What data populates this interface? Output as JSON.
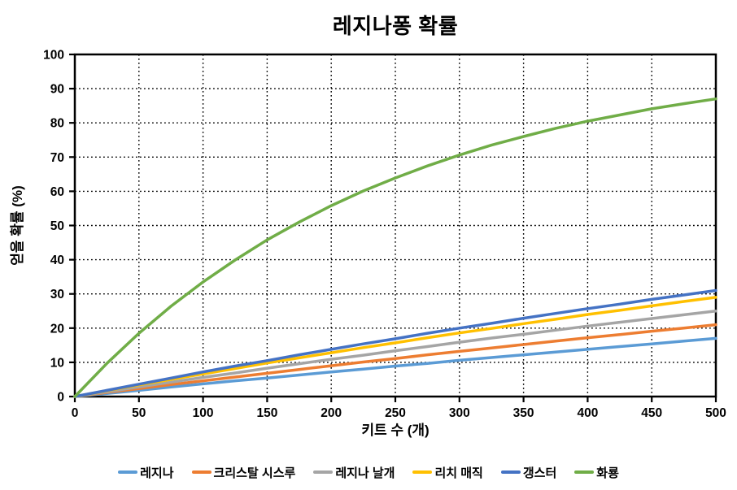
{
  "chart_data": {
    "type": "line",
    "title": "레지나퐁 확률",
    "xlabel": "키트 수 (개)",
    "ylabel": "얻을 확률 (%)",
    "xlim": [
      0,
      500
    ],
    "ylim": [
      0,
      100
    ],
    "x_ticks": [
      0,
      50,
      100,
      150,
      200,
      250,
      300,
      350,
      400,
      450,
      500
    ],
    "y_ticks": [
      0,
      10,
      20,
      30,
      40,
      50,
      60,
      70,
      80,
      90,
      100
    ],
    "grid": "dotted-black-both-axes",
    "legend_position": "bottom",
    "x": [
      0,
      25,
      50,
      75,
      100,
      125,
      150,
      175,
      200,
      225,
      250,
      275,
      300,
      325,
      350,
      375,
      400,
      425,
      450,
      475,
      500
    ],
    "series": [
      {
        "name": "레지나",
        "color": "#5B9BD5",
        "values": [
          0,
          0.9,
          1.8,
          2.8,
          3.7,
          4.6,
          5.4,
          6.3,
          7.2,
          8.0,
          8.9,
          9.7,
          10.6,
          11.4,
          12.2,
          13.0,
          13.8,
          14.6,
          15.4,
          16.2,
          17.0
        ]
      },
      {
        "name": "크리스탈 시스루",
        "color": "#ED7D31",
        "values": [
          0,
          1.2,
          2.3,
          3.5,
          4.6,
          5.7,
          6.8,
          7.9,
          9.0,
          10.1,
          11.1,
          12.2,
          13.2,
          14.2,
          15.2,
          16.2,
          17.2,
          18.1,
          19.1,
          20.0,
          21.0
        ]
      },
      {
        "name": "레지나 날개",
        "color": "#A5A5A5",
        "values": [
          0,
          1.4,
          2.8,
          4.2,
          5.6,
          6.9,
          8.3,
          9.6,
          10.9,
          12.1,
          13.4,
          14.6,
          15.9,
          17.1,
          18.2,
          19.4,
          20.6,
          21.7,
          22.8,
          23.9,
          25.0
        ]
      },
      {
        "name": "리치 매직",
        "color": "#FFC000",
        "values": [
          0,
          1.7,
          3.4,
          5.0,
          6.6,
          8.2,
          9.8,
          11.3,
          12.8,
          14.3,
          15.7,
          17.2,
          18.6,
          19.9,
          21.3,
          22.6,
          24.0,
          25.2,
          26.5,
          27.8,
          29.0
        ]
      },
      {
        "name": "갱스터",
        "color": "#4472C4",
        "values": [
          0,
          1.8,
          3.6,
          5.4,
          7.2,
          8.9,
          10.5,
          12.2,
          13.8,
          15.4,
          16.9,
          18.5,
          20.0,
          21.4,
          22.9,
          24.3,
          25.7,
          27.0,
          28.4,
          29.7,
          31.0
        ]
      },
      {
        "name": "화룡",
        "color": "#70AD47",
        "values": [
          0,
          9.7,
          18.5,
          26.4,
          33.5,
          39.9,
          45.8,
          51.0,
          55.8,
          60.1,
          63.9,
          67.4,
          70.6,
          73.5,
          76.0,
          78.4,
          80.5,
          82.3,
          84.1,
          85.6,
          87.0
        ]
      }
    ]
  },
  "style": {
    "axis_color": "#000000",
    "grid_color": "#000000",
    "background": "#FFFFFF",
    "text_color": "#000000"
  }
}
